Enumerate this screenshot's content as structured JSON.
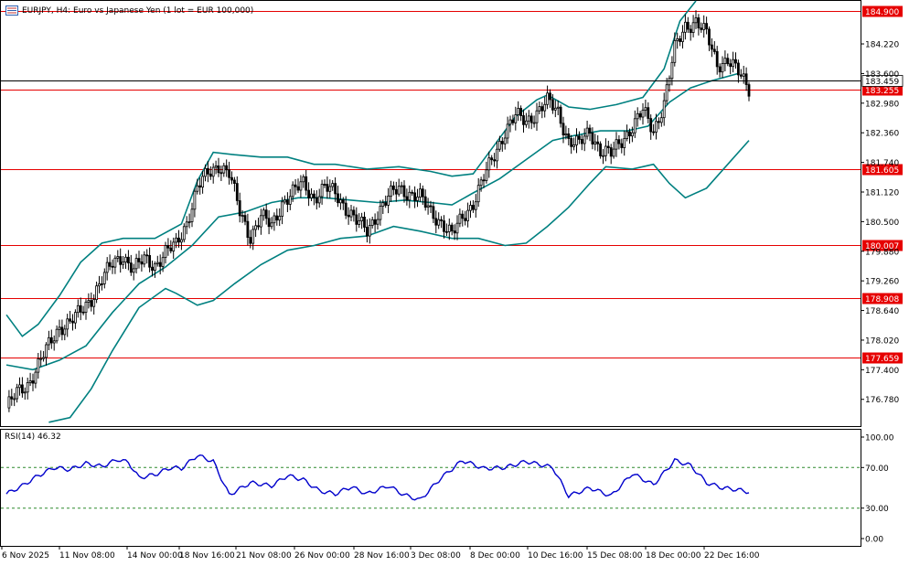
{
  "title": "EURJPY, H4:  Euro vs Japanese Yen (1 lot = EUR 100,000)",
  "rsi_label": "RSI(14) 46.32",
  "colors": {
    "grid_line": "#e60000",
    "bands": "#008080",
    "rsi": "#0000cc",
    "level_tag_bg": "#e60000",
    "candle": "#000000",
    "current_tag_bg": "#ffffff"
  },
  "chart_data": {
    "type": "candlestick",
    "price_axis": {
      "min": 176.22,
      "max": 185.12,
      "ticks": [
        "184.220",
        "183.600",
        "182.980",
        "182.360",
        "181.740",
        "181.120",
        "180.500",
        "179.880",
        "179.260",
        "178.640",
        "178.020",
        "177.400",
        "176.780"
      ]
    },
    "level_lines": [
      {
        "label": "184.900",
        "value": 184.9
      },
      {
        "label": "183.255",
        "value": 183.255
      },
      {
        "label": "181.605",
        "value": 181.605
      },
      {
        "label": "180.007",
        "value": 180.007
      },
      {
        "label": "178.908",
        "value": 178.908
      },
      {
        "label": "177.659",
        "value": 177.659
      }
    ],
    "current_price": {
      "label": "183.459",
      "value": 183.459
    },
    "time_labels": [
      "6 Nov 2025",
      "11 Nov 08:00",
      "14 Nov 00:00",
      "18 Nov 16:00",
      "21 Nov 08:00",
      "26 Nov 00:00",
      "28 Nov 16:00",
      "3 Dec 08:00",
      "8 Dec 00:00",
      "10 Dec 16:00",
      "15 Dec 08:00",
      "18 Dec 00:00",
      "22 Dec 16:00"
    ],
    "close_path": [
      [
        0,
        176.6
      ],
      [
        4,
        176.9
      ],
      [
        8,
        177.1
      ],
      [
        12,
        177.5
      ],
      [
        16,
        177.9
      ],
      [
        20,
        178.3
      ],
      [
        24,
        178.4
      ],
      [
        28,
        178.6
      ],
      [
        32,
        178.9
      ],
      [
        36,
        179.3
      ],
      [
        40,
        179.6
      ],
      [
        44,
        179.8
      ],
      [
        48,
        179.5
      ],
      [
        52,
        179.7
      ],
      [
        56,
        179.6
      ],
      [
        60,
        179.85
      ],
      [
        64,
        180.0
      ],
      [
        68,
        180.5
      ],
      [
        72,
        181.2
      ],
      [
        76,
        181.5
      ],
      [
        80,
        181.7
      ],
      [
        84,
        181.5
      ],
      [
        88,
        180.7
      ],
      [
        92,
        180.2
      ],
      [
        96,
        180.6
      ],
      [
        100,
        180.4
      ],
      [
        104,
        180.9
      ],
      [
        108,
        181.1
      ],
      [
        112,
        181.3
      ],
      [
        116,
        181.0
      ],
      [
        120,
        181.2
      ],
      [
        124,
        181.1
      ],
      [
        128,
        180.8
      ],
      [
        132,
        180.5
      ],
      [
        136,
        180.3
      ],
      [
        140,
        180.7
      ],
      [
        144,
        181.0
      ],
      [
        148,
        181.2
      ],
      [
        152,
        181.1
      ],
      [
        156,
        181.0
      ],
      [
        160,
        180.7
      ],
      [
        164,
        180.5
      ],
      [
        168,
        180.2
      ],
      [
        172,
        180.6
      ],
      [
        176,
        180.9
      ],
      [
        180,
        181.4
      ],
      [
        184,
        181.9
      ],
      [
        188,
        182.4
      ],
      [
        192,
        182.7
      ],
      [
        196,
        182.6
      ],
      [
        200,
        182.8
      ],
      [
        204,
        183.0
      ],
      [
        208,
        182.8
      ],
      [
        212,
        182.2
      ],
      [
        216,
        182.1
      ],
      [
        220,
        182.4
      ],
      [
        224,
        182.0
      ],
      [
        228,
        181.9
      ],
      [
        232,
        182.2
      ],
      [
        236,
        182.5
      ],
      [
        240,
        182.8
      ],
      [
        244,
        182.4
      ],
      [
        248,
        183.0
      ],
      [
        252,
        184.1
      ],
      [
        256,
        184.6
      ],
      [
        260,
        184.7
      ],
      [
        264,
        184.4
      ],
      [
        268,
        183.8
      ],
      [
        272,
        183.9
      ],
      [
        276,
        183.6
      ],
      [
        280,
        183.3
      ]
    ],
    "bands": {
      "upper": [
        [
          0,
          178.55
        ],
        [
          6,
          178.1
        ],
        [
          12,
          178.35
        ],
        [
          20,
          178.95
        ],
        [
          28,
          179.65
        ],
        [
          36,
          180.05
        ],
        [
          44,
          180.15
        ],
        [
          56,
          180.15
        ],
        [
          66,
          180.45
        ],
        [
          72,
          181.35
        ],
        [
          78,
          181.95
        ],
        [
          86,
          181.9
        ],
        [
          96,
          181.85
        ],
        [
          106,
          181.85
        ],
        [
          116,
          181.7
        ],
        [
          124,
          181.7
        ],
        [
          136,
          181.6
        ],
        [
          148,
          181.65
        ],
        [
          160,
          181.55
        ],
        [
          168,
          181.45
        ],
        [
          176,
          181.5
        ],
        [
          184,
          182.1
        ],
        [
          192,
          182.7
        ],
        [
          200,
          183.05
        ],
        [
          204,
          183.15
        ],
        [
          212,
          182.9
        ],
        [
          220,
          182.85
        ],
        [
          230,
          182.95
        ],
        [
          240,
          183.1
        ],
        [
          248,
          183.7
        ],
        [
          254,
          184.7
        ],
        [
          260,
          185.12
        ]
      ],
      "middle": [
        [
          0,
          177.5
        ],
        [
          10,
          177.4
        ],
        [
          20,
          177.6
        ],
        [
          30,
          177.9
        ],
        [
          40,
          178.6
        ],
        [
          50,
          179.2
        ],
        [
          60,
          179.55
        ],
        [
          70,
          180.0
        ],
        [
          80,
          180.6
        ],
        [
          90,
          180.7
        ],
        [
          100,
          180.9
        ],
        [
          110,
          181.0
        ],
        [
          120,
          181.0
        ],
        [
          130,
          180.95
        ],
        [
          140,
          180.9
        ],
        [
          150,
          180.95
        ],
        [
          160,
          180.9
        ],
        [
          168,
          180.85
        ],
        [
          176,
          181.1
        ],
        [
          186,
          181.4
        ],
        [
          196,
          181.8
        ],
        [
          206,
          182.2
        ],
        [
          214,
          182.3
        ],
        [
          224,
          182.4
        ],
        [
          234,
          182.4
        ],
        [
          242,
          182.5
        ],
        [
          250,
          183.0
        ],
        [
          258,
          183.3
        ],
        [
          266,
          183.45
        ],
        [
          276,
          183.6
        ]
      ],
      "lower": [
        [
          16,
          176.3
        ],
        [
          24,
          176.4
        ],
        [
          32,
          177.0
        ],
        [
          40,
          177.8
        ],
        [
          50,
          178.7
        ],
        [
          60,
          179.1
        ],
        [
          64,
          179.0
        ],
        [
          72,
          178.75
        ],
        [
          78,
          178.85
        ],
        [
          86,
          179.2
        ],
        [
          96,
          179.6
        ],
        [
          106,
          179.9
        ],
        [
          116,
          180.0
        ],
        [
          126,
          180.15
        ],
        [
          136,
          180.2
        ],
        [
          146,
          180.4
        ],
        [
          156,
          180.3
        ],
        [
          168,
          180.15
        ],
        [
          178,
          180.15
        ],
        [
          188,
          180.0
        ],
        [
          196,
          180.05
        ],
        [
          204,
          180.4
        ],
        [
          212,
          180.8
        ],
        [
          220,
          181.3
        ],
        [
          226,
          181.65
        ],
        [
          236,
          181.6
        ],
        [
          244,
          181.7
        ],
        [
          250,
          181.3
        ],
        [
          256,
          181.0
        ],
        [
          264,
          181.2
        ],
        [
          272,
          181.7
        ],
        [
          280,
          182.2
        ]
      ]
    },
    "rsi": {
      "axis": {
        "min": 0,
        "max": 100,
        "ticks": [
          "100.00",
          "70.00",
          "30.00",
          "0.00"
        ]
      },
      "levels": [
        70,
        30
      ],
      "values": [
        [
          0,
          44
        ],
        [
          6,
          52
        ],
        [
          12,
          62
        ],
        [
          18,
          70
        ],
        [
          24,
          68
        ],
        [
          30,
          74
        ],
        [
          36,
          71
        ],
        [
          42,
          78
        ],
        [
          46,
          75
        ],
        [
          50,
          60
        ],
        [
          56,
          63
        ],
        [
          62,
          70
        ],
        [
          66,
          69
        ],
        [
          72,
          82
        ],
        [
          78,
          76
        ],
        [
          84,
          43
        ],
        [
          92,
          55
        ],
        [
          100,
          52
        ],
        [
          106,
          62
        ],
        [
          112,
          58
        ],
        [
          118,
          47
        ],
        [
          124,
          44
        ],
        [
          130,
          51
        ],
        [
          136,
          44
        ],
        [
          144,
          52
        ],
        [
          150,
          43
        ],
        [
          156,
          38
        ],
        [
          164,
          60
        ],
        [
          172,
          77
        ],
        [
          180,
          69
        ],
        [
          188,
          70
        ],
        [
          196,
          76
        ],
        [
          206,
          70
        ],
        [
          212,
          42
        ],
        [
          220,
          50
        ],
        [
          228,
          42
        ],
        [
          236,
          64
        ],
        [
          244,
          53
        ],
        [
          252,
          77
        ],
        [
          258,
          72
        ],
        [
          264,
          55
        ],
        [
          270,
          50
        ],
        [
          276,
          48
        ],
        [
          280,
          46
        ]
      ]
    }
  }
}
